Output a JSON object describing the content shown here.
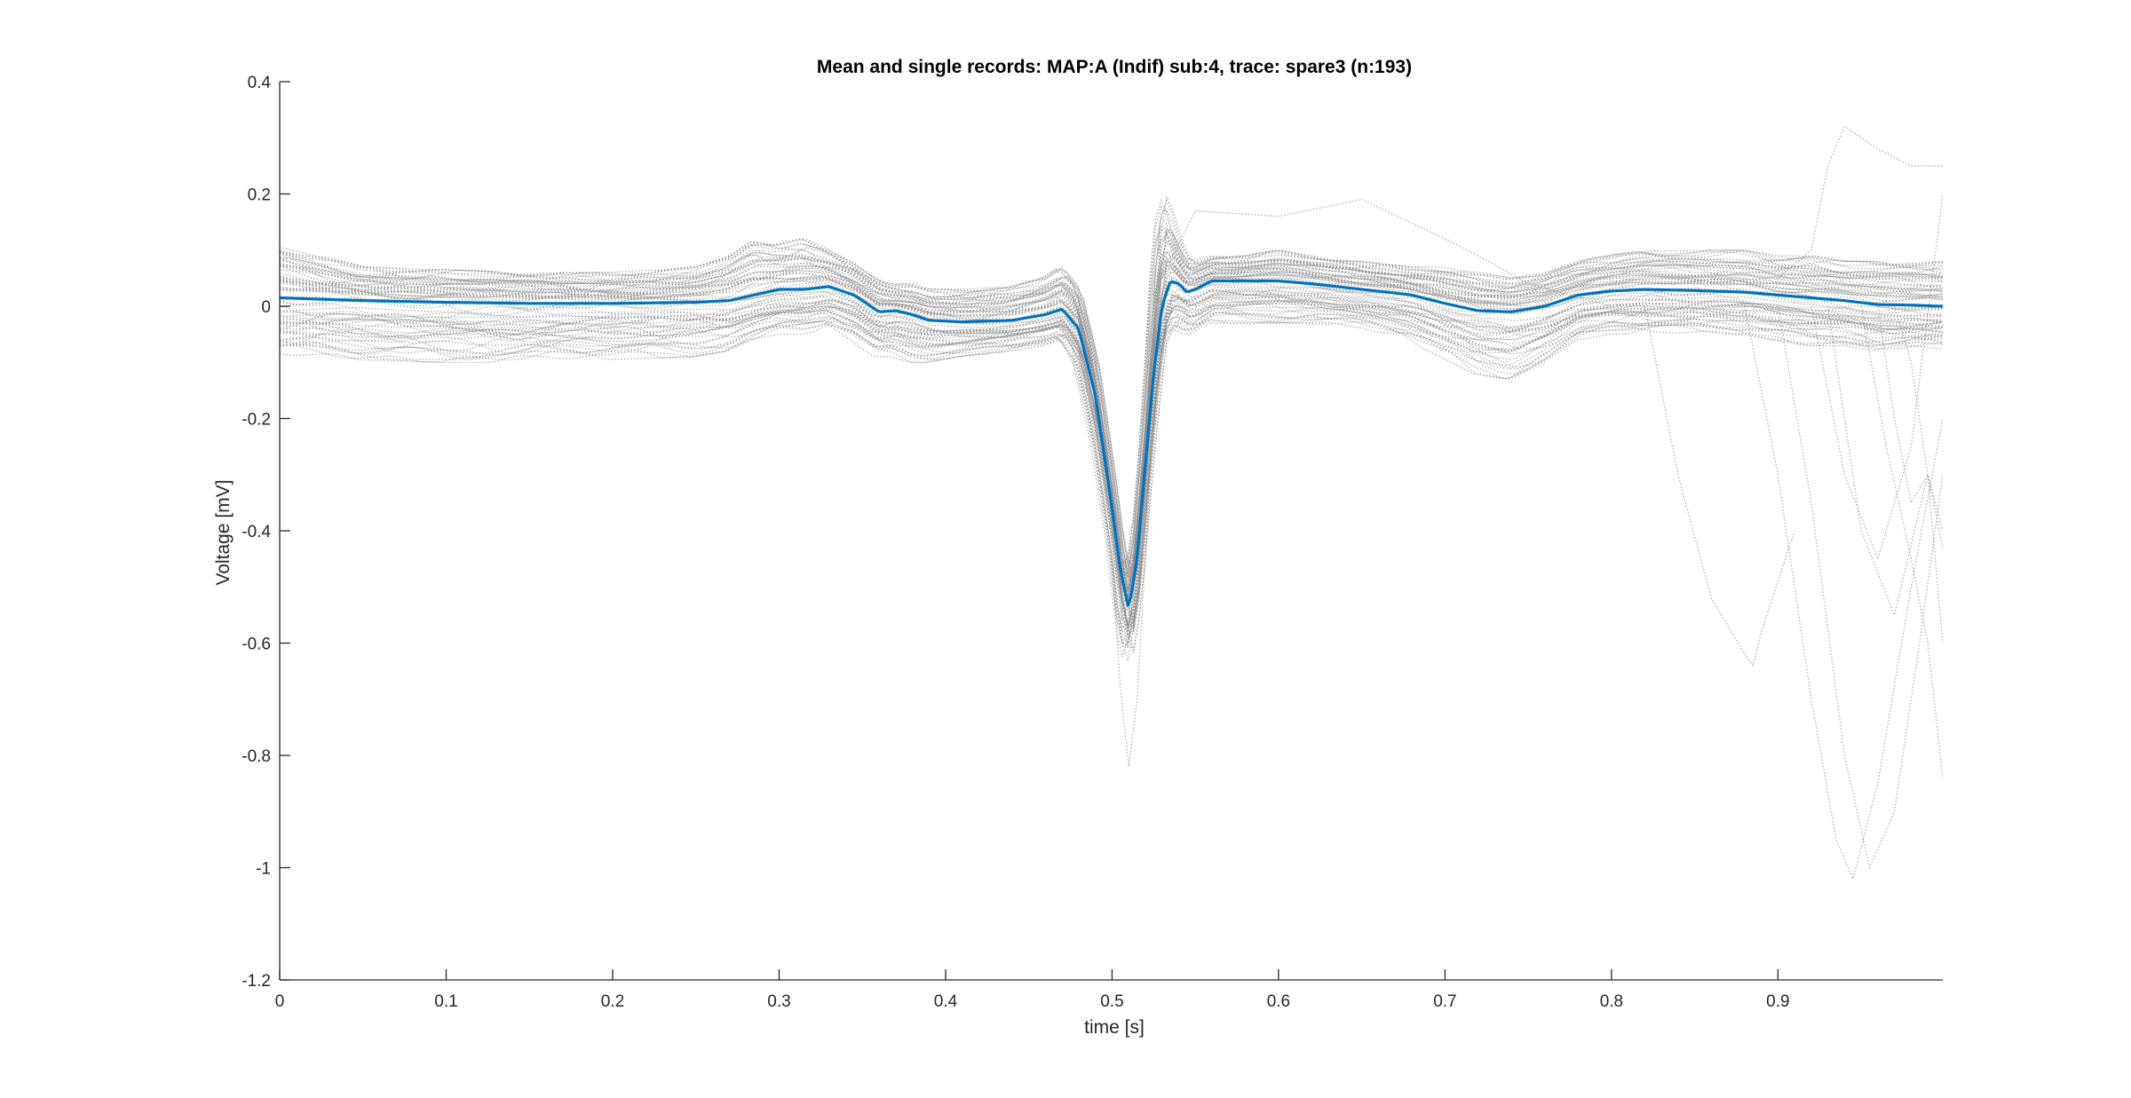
{
  "chart_data": {
    "type": "line",
    "title": "Mean and single records: MAP:A (Indif) sub:4, trace: spare3 (n:193)",
    "xlabel": "time [s]",
    "ylabel": "Voltage [mV]",
    "xlim": [
      0,
      0.999
    ],
    "ylim": [
      -1.2,
      0.4
    ],
    "x_ticks": [
      0,
      0.1,
      0.2,
      0.3,
      0.4,
      0.5,
      0.6,
      0.7,
      0.8,
      0.9
    ],
    "x_tick_labels": [
      "0",
      "0.1",
      "0.2",
      "0.3",
      "0.4",
      "0.5",
      "0.6",
      "0.7",
      "0.8",
      "0.9"
    ],
    "y_ticks": [
      0.4,
      0.2,
      0,
      -0.2,
      -0.4,
      -0.6,
      -0.8,
      -1,
      -1.2
    ],
    "y_tick_labels": [
      "0.4",
      "0.2",
      "0",
      "-0.2",
      "-0.4",
      "-0.6",
      "-0.8",
      "-1",
      "-1.2"
    ],
    "grid": false,
    "legend": "none",
    "colors": {
      "mean": "#0072BD",
      "single": "#8c8c8c",
      "axis": "#262626"
    },
    "mean_series": {
      "style": "solid",
      "x": [
        0,
        0.05,
        0.1,
        0.15,
        0.2,
        0.25,
        0.27,
        0.285,
        0.3,
        0.315,
        0.33,
        0.345,
        0.36,
        0.37,
        0.38,
        0.39,
        0.41,
        0.44,
        0.46,
        0.47,
        0.48,
        0.49,
        0.5,
        0.505,
        0.51,
        0.515,
        0.52,
        0.525,
        0.53,
        0.535,
        0.54,
        0.545,
        0.55,
        0.56,
        0.58,
        0.6,
        0.62,
        0.65,
        0.68,
        0.7,
        0.72,
        0.74,
        0.76,
        0.78,
        0.8,
        0.82,
        0.85,
        0.88,
        0.9,
        0.92,
        0.94,
        0.96,
        0.98,
        0.999
      ],
      "y": [
        0.015,
        0.01,
        0.007,
        0.005,
        0.005,
        0.007,
        0.01,
        0.02,
        0.03,
        0.03,
        0.035,
        0.02,
        -0.01,
        -0.008,
        -0.015,
        -0.025,
        -0.028,
        -0.025,
        -0.015,
        -0.005,
        -0.04,
        -0.16,
        -0.36,
        -0.47,
        -0.54,
        -0.45,
        -0.28,
        -0.12,
        0.0,
        0.045,
        0.04,
        0.025,
        0.03,
        0.045,
        0.045,
        0.045,
        0.04,
        0.03,
        0.02,
        0.005,
        -0.008,
        -0.01,
        0.0,
        0.02,
        0.027,
        0.03,
        0.028,
        0.025,
        0.02,
        0.015,
        0.01,
        0.003,
        0.002,
        0.0
      ]
    },
    "single_records": {
      "style": "dotted",
      "count": 193,
      "envelope": {
        "x": [
          0,
          0.05,
          0.1,
          0.15,
          0.2,
          0.25,
          0.27,
          0.285,
          0.3,
          0.315,
          0.33,
          0.345,
          0.36,
          0.37,
          0.38,
          0.39,
          0.41,
          0.44,
          0.46,
          0.47,
          0.48,
          0.49,
          0.5,
          0.505,
          0.51,
          0.515,
          0.52,
          0.525,
          0.53,
          0.535,
          0.54,
          0.545,
          0.55,
          0.56,
          0.58,
          0.6,
          0.62,
          0.65,
          0.68,
          0.7,
          0.72,
          0.74,
          0.76,
          0.78,
          0.8,
          0.82,
          0.85,
          0.88,
          0.9,
          0.92,
          0.94,
          0.96,
          0.98,
          0.999
        ],
        "upper": [
          0.11,
          0.07,
          0.065,
          0.06,
          0.06,
          0.07,
          0.09,
          0.12,
          0.11,
          0.12,
          0.1,
          0.08,
          0.05,
          0.04,
          0.04,
          0.03,
          0.03,
          0.035,
          0.05,
          0.07,
          0.04,
          -0.08,
          -0.28,
          -0.4,
          -0.48,
          -0.38,
          -0.2,
          0.05,
          0.2,
          0.17,
          0.12,
          0.09,
          0.08,
          0.09,
          0.09,
          0.1,
          0.09,
          0.08,
          0.07,
          0.07,
          0.06,
          0.05,
          0.06,
          0.08,
          0.09,
          0.1,
          0.1,
          0.1,
          0.09,
          0.09,
          0.08,
          0.08,
          0.08,
          0.08
        ],
        "lower": [
          -0.09,
          -0.095,
          -0.1,
          -0.1,
          -0.095,
          -0.09,
          -0.08,
          -0.06,
          -0.05,
          -0.05,
          -0.04,
          -0.06,
          -0.09,
          -0.09,
          -0.1,
          -0.1,
          -0.09,
          -0.08,
          -0.07,
          -0.06,
          -0.11,
          -0.25,
          -0.44,
          -0.58,
          -0.65,
          -0.56,
          -0.38,
          -0.22,
          -0.08,
          -0.05,
          -0.04,
          -0.05,
          -0.05,
          -0.03,
          -0.03,
          -0.03,
          -0.03,
          -0.04,
          -0.06,
          -0.09,
          -0.12,
          -0.13,
          -0.1,
          -0.06,
          -0.05,
          -0.05,
          -0.05,
          -0.05,
          -0.06,
          -0.07,
          -0.07,
          -0.08,
          -0.08,
          -0.08
        ]
      },
      "outlier_records": [
        {
          "x": [
            0.5,
            0.505,
            0.51,
            0.515,
            0.52,
            0.525,
            0.53
          ],
          "y": [
            -0.45,
            -0.68,
            -0.82,
            -0.7,
            -0.45,
            -0.2,
            0.0
          ]
        },
        {
          "x": [
            0.53,
            0.55,
            0.6,
            0.65,
            0.7,
            0.72,
            0.75,
            0.8
          ],
          "y": [
            0.05,
            0.17,
            0.16,
            0.19,
            0.12,
            0.09,
            0.04,
            0.0
          ]
        },
        {
          "x": [
            0.82,
            0.84,
            0.86,
            0.88,
            0.885,
            0.89,
            0.91
          ],
          "y": [
            0.0,
            -0.3,
            -0.52,
            -0.62,
            -0.64,
            -0.58,
            -0.4
          ]
        },
        {
          "x": [
            0.88,
            0.9,
            0.92,
            0.935,
            0.945,
            0.96,
            0.98,
            0.999
          ],
          "y": [
            0.0,
            -0.3,
            -0.7,
            -0.95,
            -1.02,
            -0.85,
            -0.5,
            -0.2
          ]
        },
        {
          "x": [
            0.9,
            0.92,
            0.94,
            0.955,
            0.97,
            0.985,
            0.999
          ],
          "y": [
            0.0,
            -0.35,
            -0.8,
            -1.0,
            -0.9,
            -0.6,
            -0.3
          ]
        },
        {
          "x": [
            0.9,
            0.92,
            0.93,
            0.94,
            0.96,
            0.98,
            0.999
          ],
          "y": [
            0.05,
            0.1,
            0.25,
            0.32,
            0.28,
            0.25,
            0.25
          ]
        },
        {
          "x": [
            0.92,
            0.94,
            0.96,
            0.98,
            0.999
          ],
          "y": [
            0.0,
            -0.3,
            -0.45,
            -0.25,
            0.2
          ]
        },
        {
          "x": [
            0.95,
            0.965,
            0.98,
            0.99,
            0.999
          ],
          "y": [
            0.0,
            -0.25,
            -0.45,
            -0.6,
            -0.84
          ]
        },
        {
          "x": [
            0.96,
            0.97,
            0.98,
            0.99,
            0.999
          ],
          "y": [
            0.0,
            -0.2,
            -0.35,
            -0.3,
            -0.6
          ]
        },
        {
          "x": [
            0.93,
            0.95,
            0.97,
            0.99,
            0.999
          ],
          "y": [
            0.0,
            -0.4,
            -0.55,
            -0.3,
            -0.43
          ]
        },
        {
          "x": [
            0.97,
            0.98,
            0.99,
            0.999
          ],
          "y": [
            0.0,
            -0.1,
            -0.3,
            -0.4
          ]
        }
      ]
    }
  }
}
